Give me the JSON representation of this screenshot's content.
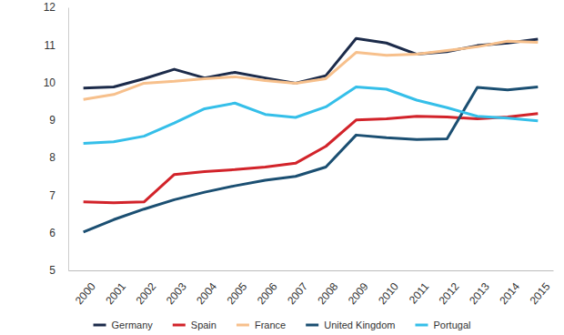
{
  "chart_data": {
    "type": "line",
    "categories": [
      "2000",
      "2001",
      "2002",
      "2003",
      "2004",
      "2005",
      "2006",
      "2007",
      "2008",
      "2009",
      "2010",
      "2011",
      "2012",
      "2013",
      "2014",
      "2015"
    ],
    "series": [
      {
        "name": "Germany",
        "color": "#1c2b4a",
        "values": [
          9.85,
          9.88,
          10.1,
          10.35,
          10.12,
          10.27,
          10.12,
          9.98,
          10.18,
          11.17,
          11.05,
          10.75,
          10.82,
          10.98,
          11.05,
          11.15
        ]
      },
      {
        "name": "Spain",
        "color": "#d2232a",
        "values": [
          6.82,
          6.8,
          6.82,
          7.55,
          7.63,
          7.68,
          7.75,
          7.85,
          8.3,
          9.0,
          9.03,
          9.1,
          9.08,
          9.03,
          9.08,
          9.17
        ]
      },
      {
        "name": "France",
        "color": "#f7c08c",
        "values": [
          9.55,
          9.68,
          9.98,
          10.03,
          10.1,
          10.15,
          10.05,
          9.98,
          10.1,
          10.8,
          10.72,
          10.75,
          10.85,
          10.95,
          11.1,
          11.07
        ]
      },
      {
        "name": "United Kingdom",
        "color": "#1b4f72",
        "values": [
          6.02,
          6.35,
          6.63,
          6.88,
          7.08,
          7.25,
          7.4,
          7.5,
          7.75,
          8.6,
          8.53,
          8.48,
          8.5,
          9.87,
          9.8,
          9.88
        ]
      },
      {
        "name": "Portugal",
        "color": "#35bfe9",
        "values": [
          8.38,
          8.42,
          8.57,
          8.92,
          9.3,
          9.45,
          9.15,
          9.07,
          9.35,
          9.88,
          9.82,
          9.53,
          9.33,
          9.1,
          9.05,
          8.98
        ]
      }
    ],
    "ylim": [
      5,
      12
    ],
    "yticks": [
      5,
      6,
      7,
      8,
      9,
      10,
      11,
      12
    ],
    "grid": false,
    "legend": "bottom"
  }
}
